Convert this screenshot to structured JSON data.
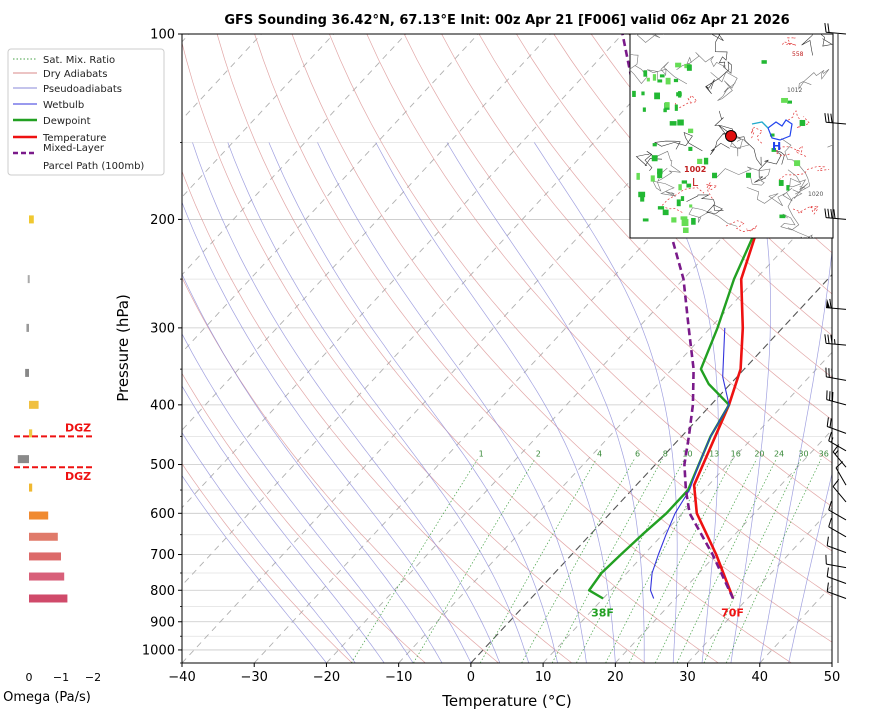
{
  "chart_data": {
    "type": "line",
    "title": "GFS Sounding 36.42°N, 67.13°E Init: 00z Apr 21 [F006] valid 06z Apr 21 2026",
    "xlabel": "Temperature (°C)",
    "ylabel": "Pressure (hPa)",
    "xlim": [
      -40,
      50
    ],
    "ylim": [
      1050,
      100
    ],
    "y_scale": "log",
    "x_ticks": [
      "−40",
      "−30",
      "−20",
      "−10",
      "0",
      "10",
      "20",
      "30",
      "40",
      "50"
    ],
    "y_ticks": [
      "100",
      "200",
      "300",
      "400",
      "500",
      "600",
      "700",
      "800",
      "900",
      "1000"
    ],
    "legend_position": "top-left (outside)",
    "legend": [
      "Sat. Mix. Ratio",
      "Dry Adiabats",
      "Pseudoadiabats",
      "Wetbulb",
      "Dewpoint",
      "Temperature",
      "Mixed-Layer\nParcel Path (100mb)"
    ],
    "mixing_ratio_labels": [
      "1",
      "2",
      "4",
      "6",
      "8",
      "10",
      "13",
      "16",
      "20",
      "24",
      "30",
      "36"
    ],
    "colors": {
      "temperature": "#ee1111",
      "dewpoint": "#22a022",
      "wetbulb": "#3333dd",
      "parcel": "#7a1a8a",
      "dry_adiabat": "#d88a8a",
      "pseudoadiabat": "#8a8ad8",
      "mix_ratio": "#44a044",
      "isotherm": "#999999",
      "zero_isotherm": "#555555",
      "dgz": "#ee1111"
    },
    "series": [
      {
        "name": "Temperature",
        "points": [
          [
            28,
            825
          ],
          [
            20,
            700
          ],
          [
            12,
            600
          ],
          [
            8,
            540
          ],
          [
            2.5,
            400
          ],
          [
            -0.5,
            350
          ],
          [
            -5.5,
            300
          ],
          [
            -12,
            250
          ],
          [
            -17,
            200
          ],
          [
            -14,
            175
          ],
          [
            -6.5,
            150
          ],
          [
            -3,
            125
          ],
          [
            0,
            100
          ]
        ]
      },
      {
        "name": "Dewpoint",
        "points": [
          [
            10,
            825
          ],
          [
            7,
            800
          ],
          [
            6.5,
            750
          ],
          [
            6.8,
            700
          ],
          [
            7.2,
            650
          ],
          [
            7.8,
            600
          ],
          [
            7.8,
            550
          ],
          [
            6,
            500
          ],
          [
            4,
            450
          ],
          [
            2.5,
            400
          ],
          [
            -3,
            370
          ],
          [
            -6,
            350
          ],
          [
            -9,
            300
          ],
          [
            -13,
            250
          ],
          [
            -17,
            200
          ],
          [
            -27,
            150
          ],
          [
            -26,
            125
          ],
          [
            -22,
            100
          ]
        ]
      },
      {
        "name": "Wetbulb",
        "points": [
          [
            17,
            825
          ],
          [
            15.5,
            800
          ],
          [
            13.5,
            750
          ],
          [
            12,
            700
          ],
          [
            10.5,
            650
          ],
          [
            9,
            600
          ],
          [
            8,
            550
          ],
          [
            6,
            500
          ],
          [
            4,
            450
          ],
          [
            2.5,
            400
          ],
          [
            -2,
            360
          ],
          [
            -8,
            300
          ]
        ]
      },
      {
        "name": "Mixed-Layer Parcel Path (100mb)",
        "points": [
          [
            28,
            825
          ],
          [
            19.5,
            700
          ],
          [
            11,
            600
          ],
          [
            7.5,
            550
          ],
          [
            4,
            500
          ],
          [
            1,
            450
          ],
          [
            -2.5,
            400
          ],
          [
            -7,
            350
          ],
          [
            -13,
            300
          ],
          [
            -20,
            250
          ],
          [
            -30,
            200
          ],
          [
            -43,
            150
          ],
          [
            -60,
            100
          ]
        ]
      }
    ],
    "surface_labels": {
      "temperature": "70F",
      "dewpoint": "38F"
    },
    "omega": {
      "xlabel": "Omega (Pa/s)",
      "x_ticks": [
        "0",
        "−1",
        "−2"
      ],
      "bars": [
        {
          "p": 825,
          "value": -1.2,
          "color": "#d04a6a"
        },
        {
          "p": 760,
          "value": -1.1,
          "color": "#d8607a"
        },
        {
          "p": 705,
          "value": -1.0,
          "color": "#dc6a6a"
        },
        {
          "p": 655,
          "value": -0.9,
          "color": "#e07a6a"
        },
        {
          "p": 605,
          "value": -0.6,
          "color": "#f08a30"
        },
        {
          "p": 545,
          "value": -0.1,
          "color": "#f0b830"
        },
        {
          "p": 490,
          "value": 0.35,
          "color": "#8a8a8a"
        },
        {
          "p": 445,
          "value": -0.1,
          "color": "#f0c840"
        },
        {
          "p": 400,
          "value": -0.3,
          "color": "#f0c040"
        },
        {
          "p": 355,
          "value": 0.12,
          "color": "#888888"
        },
        {
          "p": 300,
          "value": 0.08,
          "color": "#999999"
        },
        {
          "p": 250,
          "value": 0.04,
          "color": "#aaaaaa"
        },
        {
          "p": 200,
          "value": -0.15,
          "color": "#f0c830"
        },
        {
          "p": 150,
          "value": -0.05,
          "color": "#f0c830"
        }
      ],
      "dgz_label": "DGZ",
      "dgz_pressures": [
        450,
        505
      ]
    },
    "wind_barbs": [
      {
        "p": 825,
        "dir": 290,
        "kt": 10
      },
      {
        "p": 780,
        "dir": 290,
        "kt": 10
      },
      {
        "p": 735,
        "dir": 280,
        "kt": 10
      },
      {
        "p": 695,
        "dir": 290,
        "kt": 10
      },
      {
        "p": 655,
        "dir": 300,
        "kt": 10
      },
      {
        "p": 615,
        "dir": 300,
        "kt": 10
      },
      {
        "p": 575,
        "dir": 320,
        "kt": 10
      },
      {
        "p": 540,
        "dir": 330,
        "kt": 10
      },
      {
        "p": 505,
        "dir": 320,
        "kt": 15
      },
      {
        "p": 475,
        "dir": 300,
        "kt": 15
      },
      {
        "p": 445,
        "dir": 290,
        "kt": 20
      },
      {
        "p": 400,
        "dir": 285,
        "kt": 30
      },
      {
        "p": 365,
        "dir": 280,
        "kt": 30
      },
      {
        "p": 320,
        "dir": 275,
        "kt": 35
      },
      {
        "p": 280,
        "dir": 275,
        "kt": 60
      },
      {
        "p": 200,
        "dir": 275,
        "kt": 40
      },
      {
        "p": 140,
        "dir": 275,
        "kt": 30
      },
      {
        "p": 100,
        "dir": 275,
        "kt": 20
      }
    ],
    "inset_map": {
      "pressure_labels": [
        "1002",
        "1012",
        "1020",
        "L",
        "H",
        "558"
      ]
    }
  }
}
